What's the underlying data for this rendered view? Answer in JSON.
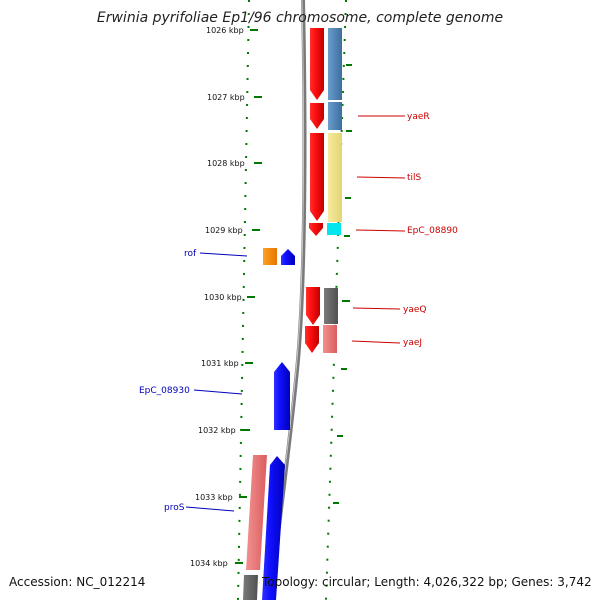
{
  "title": "Erwinia pyrifoliae Ep1/96 chromosome, complete genome",
  "footer": {
    "accession": "Accession: NC_012214",
    "summary": "Topology: circular; Length: 4,026,322 bp; Genes: 3,742"
  },
  "ticks": [
    "1026 kbp",
    "1027 kbp",
    "1028 kbp",
    "1029 kbp",
    "1030 kbp",
    "1031 kbp",
    "1032 kbp",
    "1033 kbp",
    "1034 kbp"
  ],
  "genes": [
    {
      "name": "yaeR",
      "strand": "forward-right",
      "color": "#cc0000"
    },
    {
      "name": "tilS",
      "strand": "forward-right",
      "color": "#cc0000"
    },
    {
      "name": "EpC_08890",
      "strand": "forward-right",
      "color": "#cc0000"
    },
    {
      "name": "rof",
      "strand": "reverse-left",
      "color": "#0000bb"
    },
    {
      "name": "yaeQ",
      "strand": "forward-right",
      "color": "#cc0000"
    },
    {
      "name": "yaeJ",
      "strand": "forward-right",
      "color": "#cc0000"
    },
    {
      "name": "EpC_08930",
      "strand": "reverse-left",
      "color": "#0000bb"
    },
    {
      "name": "proS",
      "strand": "reverse-left",
      "color": "#0000bb"
    }
  ],
  "colors": {
    "forward_cds": "#ff0000",
    "reverse_cds": "#0000ff",
    "backbone": "#888888",
    "ticks": "#007700",
    "steel_blue_feature": "#4a7fb0",
    "khaki_feature": "#f0e08a",
    "cyan_feature": "#00e5ee",
    "gray_feature": "#666666",
    "pink_feature": "#ee7777",
    "orange_feature": "#ff8c00"
  }
}
